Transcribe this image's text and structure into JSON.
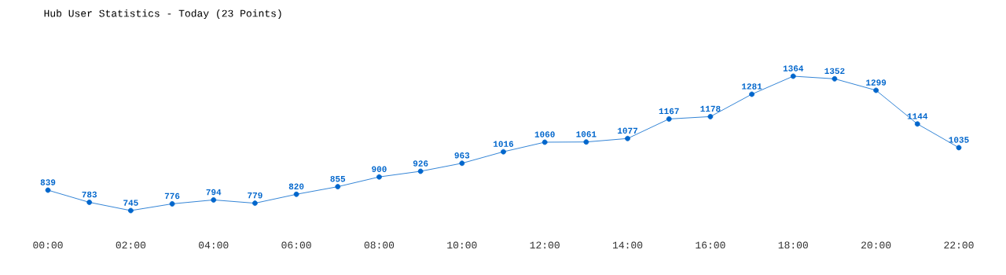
{
  "chart_data": {
    "type": "line",
    "title": "Hub User Statistics - Today (23 Points)",
    "x": [
      0,
      1,
      2,
      3,
      4,
      5,
      6,
      7,
      8,
      9,
      10,
      11,
      12,
      13,
      14,
      15,
      16,
      17,
      18,
      19,
      20,
      21,
      22
    ],
    "series": [
      {
        "color": "#0066cc",
        "values": [
          839,
          783,
          745,
          776,
          794,
          779,
          820,
          855,
          900,
          926,
          963,
          1016,
          1060,
          1061,
          1077,
          1167,
          1178,
          1281,
          1364,
          1352,
          1299,
          1144,
          1035
        ]
      }
    ],
    "xlim": [
      0,
      22
    ],
    "xticks": [
      {
        "value": 0,
        "label": "00:00"
      },
      {
        "value": 2,
        "label": "02:00"
      },
      {
        "value": 4,
        "label": "04:00"
      },
      {
        "value": 6,
        "label": "06:00"
      },
      {
        "value": 8,
        "label": "08:00"
      },
      {
        "value": 10,
        "label": "10:00"
      },
      {
        "value": 12,
        "label": "12:00"
      },
      {
        "value": 14,
        "label": "14:00"
      },
      {
        "value": 16,
        "label": "16:00"
      },
      {
        "value": 18,
        "label": "18:00"
      },
      {
        "value": 20,
        "label": "20:00"
      },
      {
        "value": 22,
        "label": "22:00"
      }
    ],
    "tick_labels": "x",
    "marker": "circle",
    "data_labels": true,
    "grid": false
  }
}
